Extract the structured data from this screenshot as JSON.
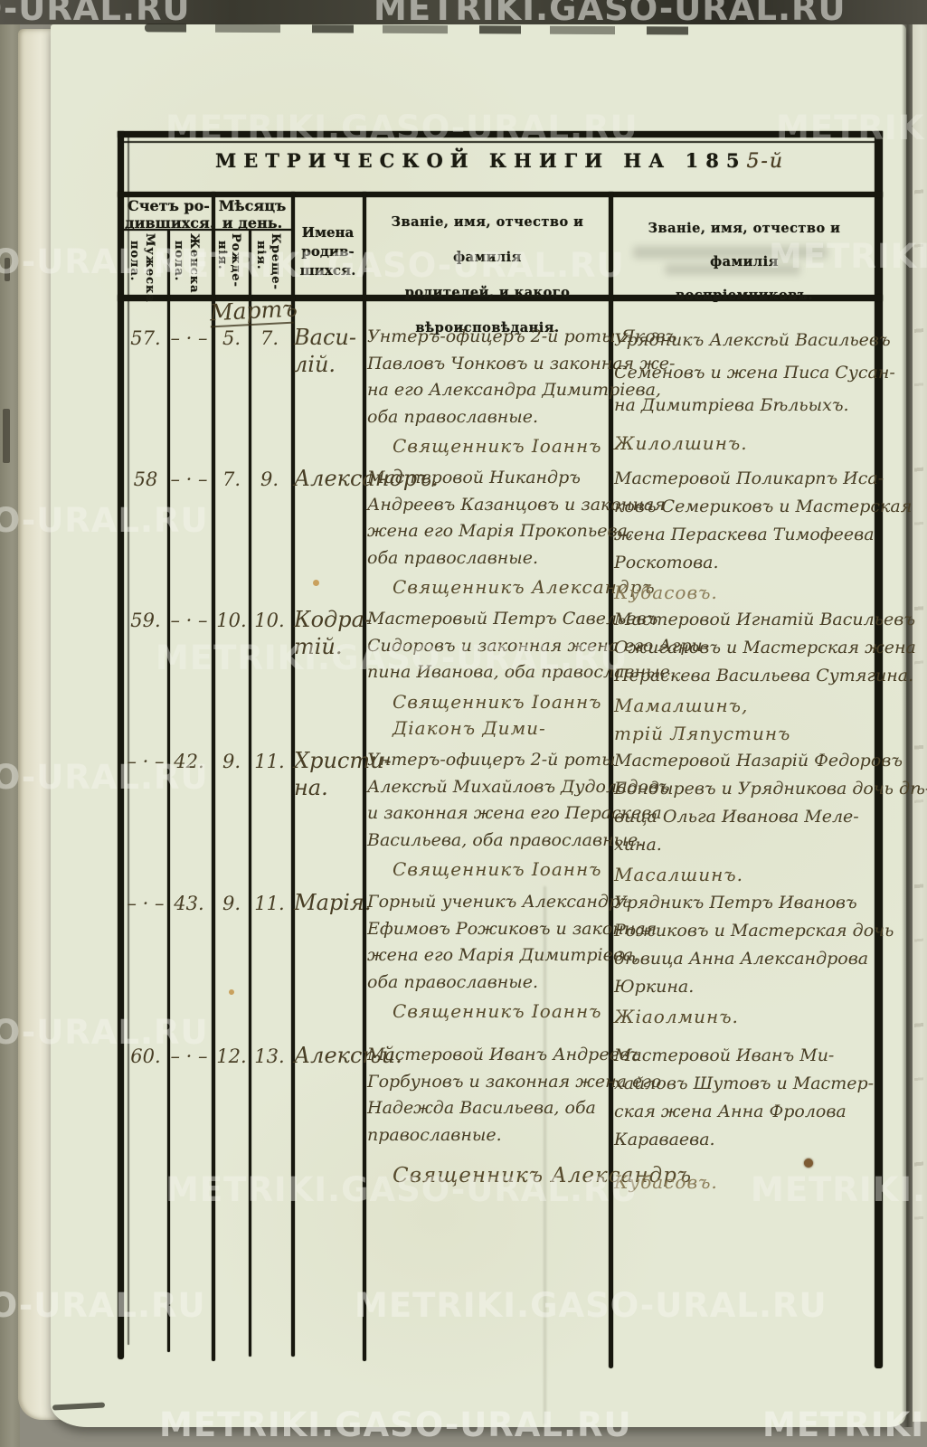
{
  "watermark": {
    "text": "METRIKI.GASO-URAL.RU"
  },
  "title": {
    "printed": "МЕТРИЧЕСКОЙ КНИГИ НА 185",
    "handwritten": "5-й"
  },
  "header": {
    "count_group": {
      "line1": "Счетъ ро-",
      "line2": "дившихся.",
      "sub_male": {
        "word1": "Мужеска",
        "word2": "пола."
      },
      "sub_female": {
        "word1": "Женска",
        "word2": "пола."
      }
    },
    "date_group": {
      "line1": "Мѣсяцъ",
      "line2": "и день.",
      "sub_born": {
        "word1": "Рожде-",
        "word2": "нія."
      },
      "sub_bapt": {
        "word1": "Креще-",
        "word2": "нія."
      }
    },
    "names_col": {
      "line1": "Имена",
      "line2": "родив-",
      "line3": "шихся."
    },
    "parents_col": {
      "line1": "Званіе, имя, отчество и фамилія",
      "line2": "родителей, и какого вѣроисповѣданія."
    },
    "godparents_col": {
      "line1": "Званіе, имя, отчество и фамилія",
      "line2": "воспріемниковъ."
    }
  },
  "month_label": "Мартъ",
  "rows": [
    {
      "num_male": "57.",
      "num_female": "– · –",
      "born_day": "5.",
      "bapt_day": "7.",
      "name": [
        "Васи-",
        "лій."
      ],
      "parents": [
        "Унтеръ-офицеръ 2-й роты Яковъ",
        "Павловъ Чонковъ и законная же-",
        "на его Александра Димитріева,",
        "оба православные."
      ],
      "clergy": [
        "Священникъ Іоаннъ"
      ],
      "godparents": [
        "Урядникъ Алексѣй Васильевъ",
        "Семеновъ и жена Писа Сусан-",
        "на Димитріева Бѣльыхъ."
      ],
      "sig": [
        "Жилолшинъ."
      ]
    },
    {
      "num_male": "58",
      "num_female": "– · –",
      "born_day": "7.",
      "bapt_day": "9.",
      "name": [
        "Александръ."
      ],
      "parents": [
        "Мастеровой Никандръ",
        "Андреевъ Казанцовъ и законная",
        "жена его Марія Прокопьева,",
        "оба православные."
      ],
      "clergy": [
        "Священникъ Александръ"
      ],
      "godparents": [
        "Мастеровой Поликарпъ Иса-",
        "ковъ Семериковъ и Мастерская",
        "жена Пераскева Тимофеева",
        "Роскотова."
      ],
      "sig": [
        "Кубасовъ."
      ]
    },
    {
      "num_male": "59.",
      "num_female": "– · –",
      "born_day": "10.",
      "bapt_day": "10.",
      "name": [
        "Кодра-",
        "тій."
      ],
      "parents": [
        "Мастеровый Петръ Савельевъ",
        "Сидоровъ и законная жена его Агри-",
        "пина Иванова, оба православные."
      ],
      "clergy": [
        "Священникъ Іоаннъ",
        "Діаконъ Дими-"
      ],
      "godparents": [
        "Мастеровой Игнатій Васильевъ",
        "Ожигановъ и Мастерская жена",
        "Пераскева Васильева Сутягина."
      ],
      "sig": [
        "Мамалшинъ,",
        "трій Ляпустинъ"
      ]
    },
    {
      "num_male": "– · –",
      "num_female": "42.",
      "born_day": "9.",
      "bapt_day": "11.",
      "name": [
        "Христи-",
        "на."
      ],
      "parents": [
        "Унтеръ-офицеръ 2-й роты",
        "Алексѣй Михайловъ Дудоладовъ",
        "и законная жена его Пераскева",
        "Васильева, оба православные."
      ],
      "clergy": [
        "Священникъ Іоаннъ"
      ],
      "godparents": [
        "Мастеровой Назарій Федоровъ",
        "Бондыревъ и Урядникова дочь дѣ-",
        "вица Ольга Иванова Меле-",
        "хина."
      ],
      "sig": [
        "Масалшинъ."
      ]
    },
    {
      "num_male": "– · –",
      "num_female": "43.",
      "born_day": "9.",
      "bapt_day": "11.",
      "name": [
        "Марія."
      ],
      "parents": [
        "Горный ученикъ Александръ",
        "Ефимовъ Рожиковъ и законная",
        "жена его Марія Димитріева,",
        "оба православные."
      ],
      "clergy": [
        "Священникъ Іоаннъ"
      ],
      "godparents": [
        "Урядникъ Петръ Ивановъ",
        "Рожиковъ и Мастерская дочь",
        "дѣвица Анна Александрова",
        "Юркина."
      ],
      "sig": [
        "Жіаолминъ."
      ]
    },
    {
      "num_male": "60.",
      "num_female": "– · –",
      "born_day": "12.",
      "bapt_day": "13.",
      "name": [
        "Алексѣй."
      ],
      "parents": [
        "Мастеровой Иванъ Андреевъ",
        "Горбуновъ и законная жена его",
        "Надежда Васильева, оба",
        "православные."
      ],
      "clergy": [
        "Священникъ Александръ"
      ],
      "godparents": [
        "Мастеровой Иванъ Ми-",
        "хайловъ Шутовъ и Мастер-",
        "ская жена Анна Фролова",
        "Караваева."
      ],
      "sig": [
        "Кубасовъ."
      ]
    }
  ]
}
